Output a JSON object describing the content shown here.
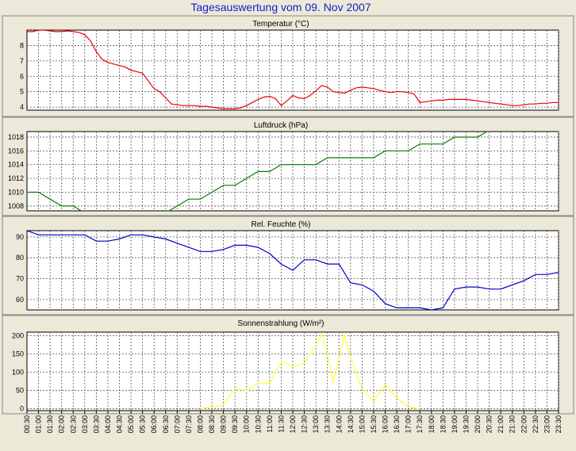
{
  "title": "Tagesauswertung vom 09. Nov 2007",
  "colors": {
    "title": "#1a1acc",
    "background": "#ece9d8",
    "plot_bg": "#ffffff",
    "grid": "#555555",
    "axis_text": "#000000",
    "panel_border": "#888888"
  },
  "chart_data": {
    "time_labels": [
      "00:30",
      "01:00",
      "01:30",
      "02:00",
      "02:30",
      "03:00",
      "03:30",
      "04:00",
      "04:30",
      "05:00",
      "05:30",
      "06:00",
      "06:30",
      "07:00",
      "07:30",
      "08:00",
      "08:30",
      "09:00",
      "09:30",
      "10:00",
      "10:30",
      "11:00",
      "11:30",
      "12:00",
      "12:30",
      "13:00",
      "13:30",
      "14:00",
      "14:30",
      "15:00",
      "15:30",
      "16:00",
      "16:30",
      "17:00",
      "17:30",
      "18:00",
      "18:30",
      "19:00",
      "19:30",
      "20:00",
      "20:30",
      "21:00",
      "21:30",
      "22:00",
      "22:30",
      "23:00",
      "23:30"
    ],
    "panels": [
      {
        "type": "line",
        "title": "Temperatur (°C)",
        "color": "#ee0000",
        "ylim": [
          3.8,
          9
        ],
        "yticks": [
          "4",
          "5",
          "6",
          "7",
          "8"
        ],
        "ytick_values": [
          4,
          5,
          6,
          7,
          8
        ],
        "x": [
          0,
          0.5,
          1,
          1.5,
          2,
          2.5,
          3,
          3.5,
          4,
          4.5,
          5,
          5.5,
          6,
          6.5,
          7,
          7.5,
          8,
          8.5,
          9,
          9.5,
          10,
          10.5,
          11,
          11.5,
          12,
          12.5,
          13,
          13.5,
          14,
          14.5,
          15,
          15.5,
          16,
          16.5,
          17,
          17.5,
          18,
          18.5,
          19,
          19.5,
          20,
          20.5,
          21,
          21.5,
          22,
          22.5,
          23,
          23.5,
          24,
          24.5,
          25,
          25.5,
          26,
          26.5,
          27,
          27.5,
          28,
          28.5,
          29,
          29.5,
          30,
          30.5,
          31,
          31.5,
          32,
          32.5,
          33,
          33.5,
          34,
          34.5,
          35,
          35.5,
          36,
          36.5,
          37,
          37.5,
          38,
          38.5,
          39,
          39.5,
          40,
          40.5,
          41,
          41.5,
          42,
          42.5,
          43,
          43.5,
          44,
          44.5,
          45,
          45.5,
          46
        ],
        "y": [
          8.9,
          8.9,
          9,
          9,
          8.95,
          8.9,
          8.9,
          8.95,
          8.9,
          8.85,
          8.7,
          8.3,
          7.6,
          7.1,
          6.9,
          6.8,
          6.7,
          6.6,
          6.4,
          6.3,
          6.2,
          5.7,
          5.2,
          5,
          4.6,
          4.2,
          4.15,
          4.1,
          4.1,
          4.1,
          4.05,
          4.05,
          4,
          3.95,
          3.9,
          3.9,
          3.9,
          3.95,
          4.1,
          4.3,
          4.5,
          4.65,
          4.7,
          4.55,
          4.1,
          4.4,
          4.75,
          4.6,
          4.55,
          4.75,
          5.05,
          5.4,
          5.3,
          5,
          4.95,
          4.9,
          5.1,
          5.25,
          5.3,
          5.25,
          5.2,
          5.1,
          5,
          4.95,
          5,
          5,
          4.95,
          4.85,
          4.3,
          4.35,
          4.4,
          4.45,
          4.45,
          4.5,
          4.5,
          4.5,
          4.5,
          4.45,
          4.4,
          4.35,
          4.3,
          4.25,
          4.2,
          4.15,
          4.1,
          4.1,
          4.15,
          4.2,
          4.2,
          4.25,
          4.25,
          4.3,
          4.3
        ]
      },
      {
        "type": "line",
        "title": "Luftdruck (hPa)",
        "color": "#008000",
        "ylim": [
          1007.3,
          1018.8
        ],
        "yticks": [
          "1008",
          "1010",
          "1012",
          "1014",
          "1016",
          "1018"
        ],
        "ytick_values": [
          1008,
          1010,
          1012,
          1014,
          1016,
          1018
        ],
        "x": [
          0,
          1,
          2,
          3,
          4,
          5,
          12,
          13,
          14,
          15,
          16,
          17,
          18,
          19,
          20,
          21,
          22,
          23,
          24,
          25,
          26,
          27,
          28,
          29,
          30,
          31,
          32,
          33,
          34,
          35,
          36,
          37,
          38,
          39,
          40,
          41,
          42,
          43
        ],
        "y": [
          1010,
          1010,
          1009,
          1008,
          1008,
          1007,
          1007,
          1008,
          1009,
          1009,
          1010,
          1011,
          1011,
          1012,
          1013,
          1013,
          1014,
          1014,
          1014,
          1014,
          1015,
          1015,
          1015,
          1015,
          1015,
          1016,
          1016,
          1016,
          1017,
          1017,
          1017,
          1018,
          1018,
          1018,
          1019,
          1019,
          1019,
          1019
        ]
      },
      {
        "type": "line",
        "title": "Rel. Feuchte (%)",
        "color": "#0000cc",
        "ylim": [
          55,
          93
        ],
        "yticks": [
          "60",
          "70",
          "80",
          "90"
        ],
        "ytick_values": [
          60,
          70,
          80,
          90
        ],
        "x": [
          0,
          1,
          2,
          3,
          4,
          5,
          6,
          7,
          8,
          9,
          10,
          11,
          12,
          13,
          14,
          15,
          16,
          17,
          18,
          19,
          20,
          21,
          22,
          23,
          24,
          25,
          26,
          27,
          28,
          29,
          30,
          31,
          32,
          33,
          34,
          35,
          36,
          37,
          38,
          39,
          40,
          41,
          42,
          43,
          44,
          45,
          46
        ],
        "y": [
          93,
          91,
          91,
          91,
          91,
          91,
          88,
          88,
          89,
          91,
          91,
          90,
          89,
          87,
          85,
          83,
          83,
          84,
          86,
          86,
          85,
          82,
          77,
          74,
          79,
          79,
          77,
          77,
          68,
          67,
          64,
          58,
          56,
          56,
          56,
          55,
          56,
          65,
          66,
          66,
          65,
          65,
          67,
          69,
          72,
          72,
          73
        ]
      },
      {
        "type": "line",
        "title": "Sonnenstrahlung (W/m²)",
        "color": "#ffff33",
        "ylim": [
          -5,
          210
        ],
        "yticks": [
          "0",
          "50",
          "100",
          "150",
          "200"
        ],
        "ytick_values": [
          0,
          50,
          100,
          150,
          200
        ],
        "x": [
          15,
          16,
          17,
          18,
          19,
          20,
          21,
          22,
          23,
          24,
          25,
          25.5,
          26,
          26.5,
          27,
          27.5,
          28,
          29,
          30,
          31,
          32,
          33,
          34
        ],
        "y": [
          0,
          5,
          10,
          55,
          50,
          70,
          70,
          130,
          115,
          125,
          175,
          205,
          150,
          70,
          140,
          205,
          140,
          55,
          20,
          65,
          30,
          5,
          0
        ]
      }
    ]
  }
}
